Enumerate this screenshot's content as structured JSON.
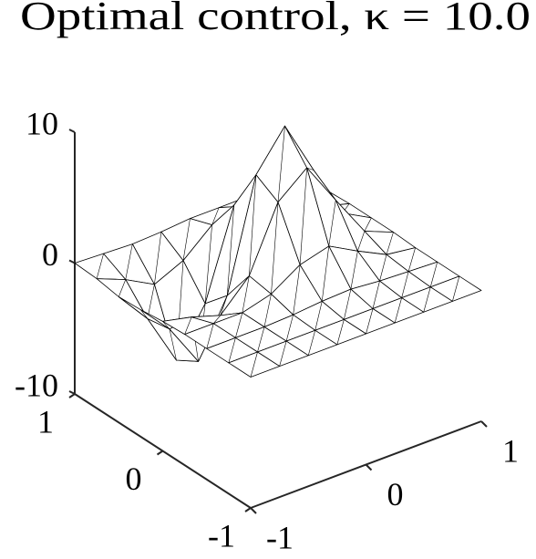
{
  "chart_data": {
    "type": "surface",
    "title": "Optimal control, κ = 10.0",
    "x": [
      -1,
      -0.75,
      -0.5,
      -0.25,
      0,
      0.25,
      0.5,
      0.75,
      1
    ],
    "y": [
      -1,
      -0.75,
      -0.5,
      -0.25,
      0,
      0.25,
      0.5,
      0.75,
      1
    ],
    "z": [
      [
        0,
        0,
        0,
        0,
        0,
        0,
        0,
        0,
        0
      ],
      [
        0,
        0,
        0,
        0,
        0,
        0,
        0,
        0,
        0
      ],
      [
        0,
        0,
        0,
        0.1,
        0.3,
        0.4,
        0.2,
        0.1,
        0
      ],
      [
        0,
        0,
        0,
        0.6,
        2,
        2.6,
        1.4,
        0.3,
        0
      ],
      [
        -0.1,
        -0.6,
        -1.3,
        0.9,
        5.7,
        7.5,
        4.2,
        1,
        0.1
      ],
      [
        -0.3,
        -2.6,
        -5.9,
        -1.7,
        6.7,
        9.6,
        5.4,
        1.3,
        0.1
      ],
      [
        -0.4,
        -2.9,
        -6.9,
        -3.4,
        3.3,
        5.4,
        3,
        0.7,
        0.1
      ],
      [
        -0.1,
        -1,
        -2.2,
        -1.2,
        0.7,
        1.3,
        0.7,
        0.2,
        0
      ],
      [
        0,
        -0.1,
        -0.2,
        -0.1,
        0.1,
        0.1,
        0.1,
        0,
        0
      ]
    ],
    "xlim": [
      -1,
      1
    ],
    "ylim": [
      -1,
      1
    ],
    "zlim": [
      -10,
      10
    ],
    "xticks": [
      -1,
      0,
      1
    ],
    "yticks": [
      -1,
      0,
      1
    ],
    "zticks": [
      -10,
      0,
      10
    ],
    "color": "#000000"
  }
}
